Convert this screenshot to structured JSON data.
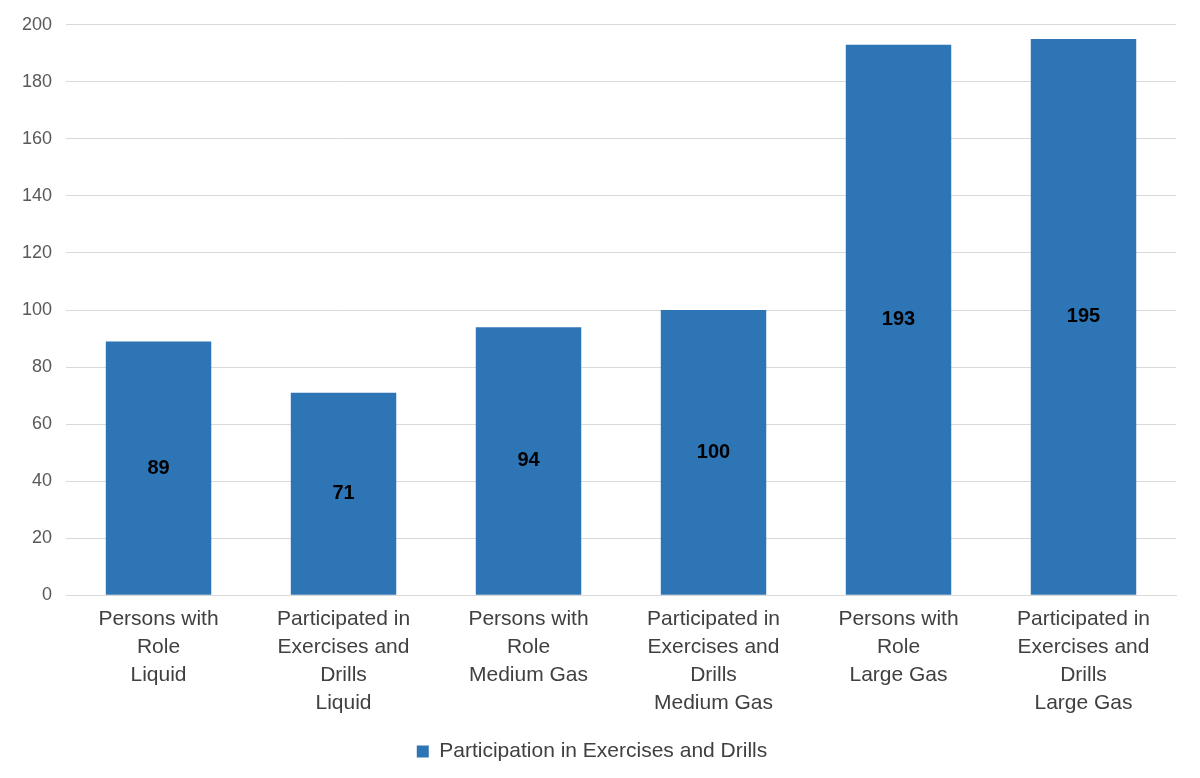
{
  "chart_data": {
    "type": "bar",
    "categories": [
      "Persons with\nRole\nLiquid",
      "Participated in\nExercises and\nDrills\nLiquid",
      "Persons with\nRole\nMedium Gas",
      "Participated in\nExercises and\nDrills\nMedium Gas",
      "Persons with\nRole\nLarge Gas",
      "Participated in\nExercises and\nDrills\nLarge Gas"
    ],
    "series": [
      {
        "name": "Participation in Exercises and Drills",
        "color": "#2e75b6",
        "values": [
          89,
          71,
          94,
          100,
          193,
          195
        ]
      }
    ],
    "ylim": [
      0,
      200
    ],
    "yticks": [
      0,
      20,
      40,
      60,
      80,
      100,
      120,
      140,
      160,
      180,
      200
    ],
    "grid": true,
    "legend": "bottom",
    "data_labels": true
  }
}
